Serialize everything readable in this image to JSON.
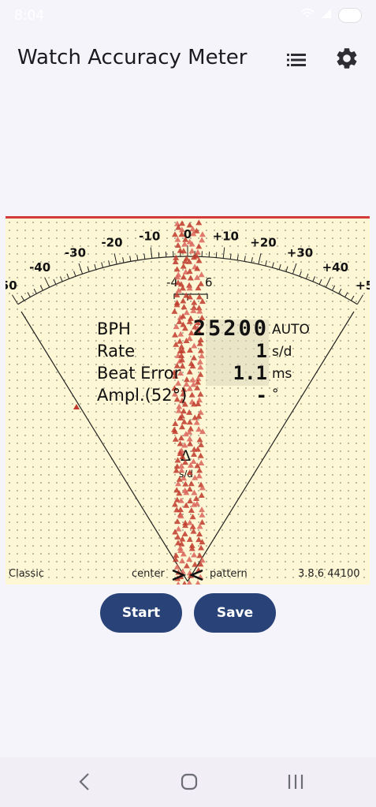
{
  "status": {
    "time": "8:04",
    "battery": "57"
  },
  "app": {
    "title": "Watch Accuracy Meter",
    "list_icon": "list-icon",
    "settings_icon": "gear-icon"
  },
  "dial": {
    "ticks_labels": [
      "-50",
      "-40",
      "-30",
      "-20",
      "-10",
      "0",
      "+10",
      "+20",
      "+30",
      "+40",
      "+50"
    ],
    "beat_window": {
      "left": "-4",
      "right": "6"
    },
    "delta_label": "Δ",
    "delta_unit": "s/d"
  },
  "readout": {
    "bph_label": "BPH",
    "bph_value": "25200",
    "bph_mode": "AUTO",
    "rate_label": "Rate",
    "rate_value": "1",
    "rate_unit": "s/d",
    "beat_error_label": "Beat Error",
    "beat_error_value": "1.1",
    "beat_error_unit": "ms",
    "amplitude_label": "Ampl.(52°)",
    "amplitude_value": "-",
    "amplitude_unit": "°"
  },
  "footer": {
    "mode": "Classic",
    "center": "center",
    "pattern": "pattern",
    "version": "3.8.6 44100"
  },
  "buttons": {
    "start": "Start",
    "save": "Save"
  },
  "colors": {
    "accent_red": "#d33a3a",
    "button_blue": "#294378",
    "meter_bg": "#fdf7d5"
  }
}
